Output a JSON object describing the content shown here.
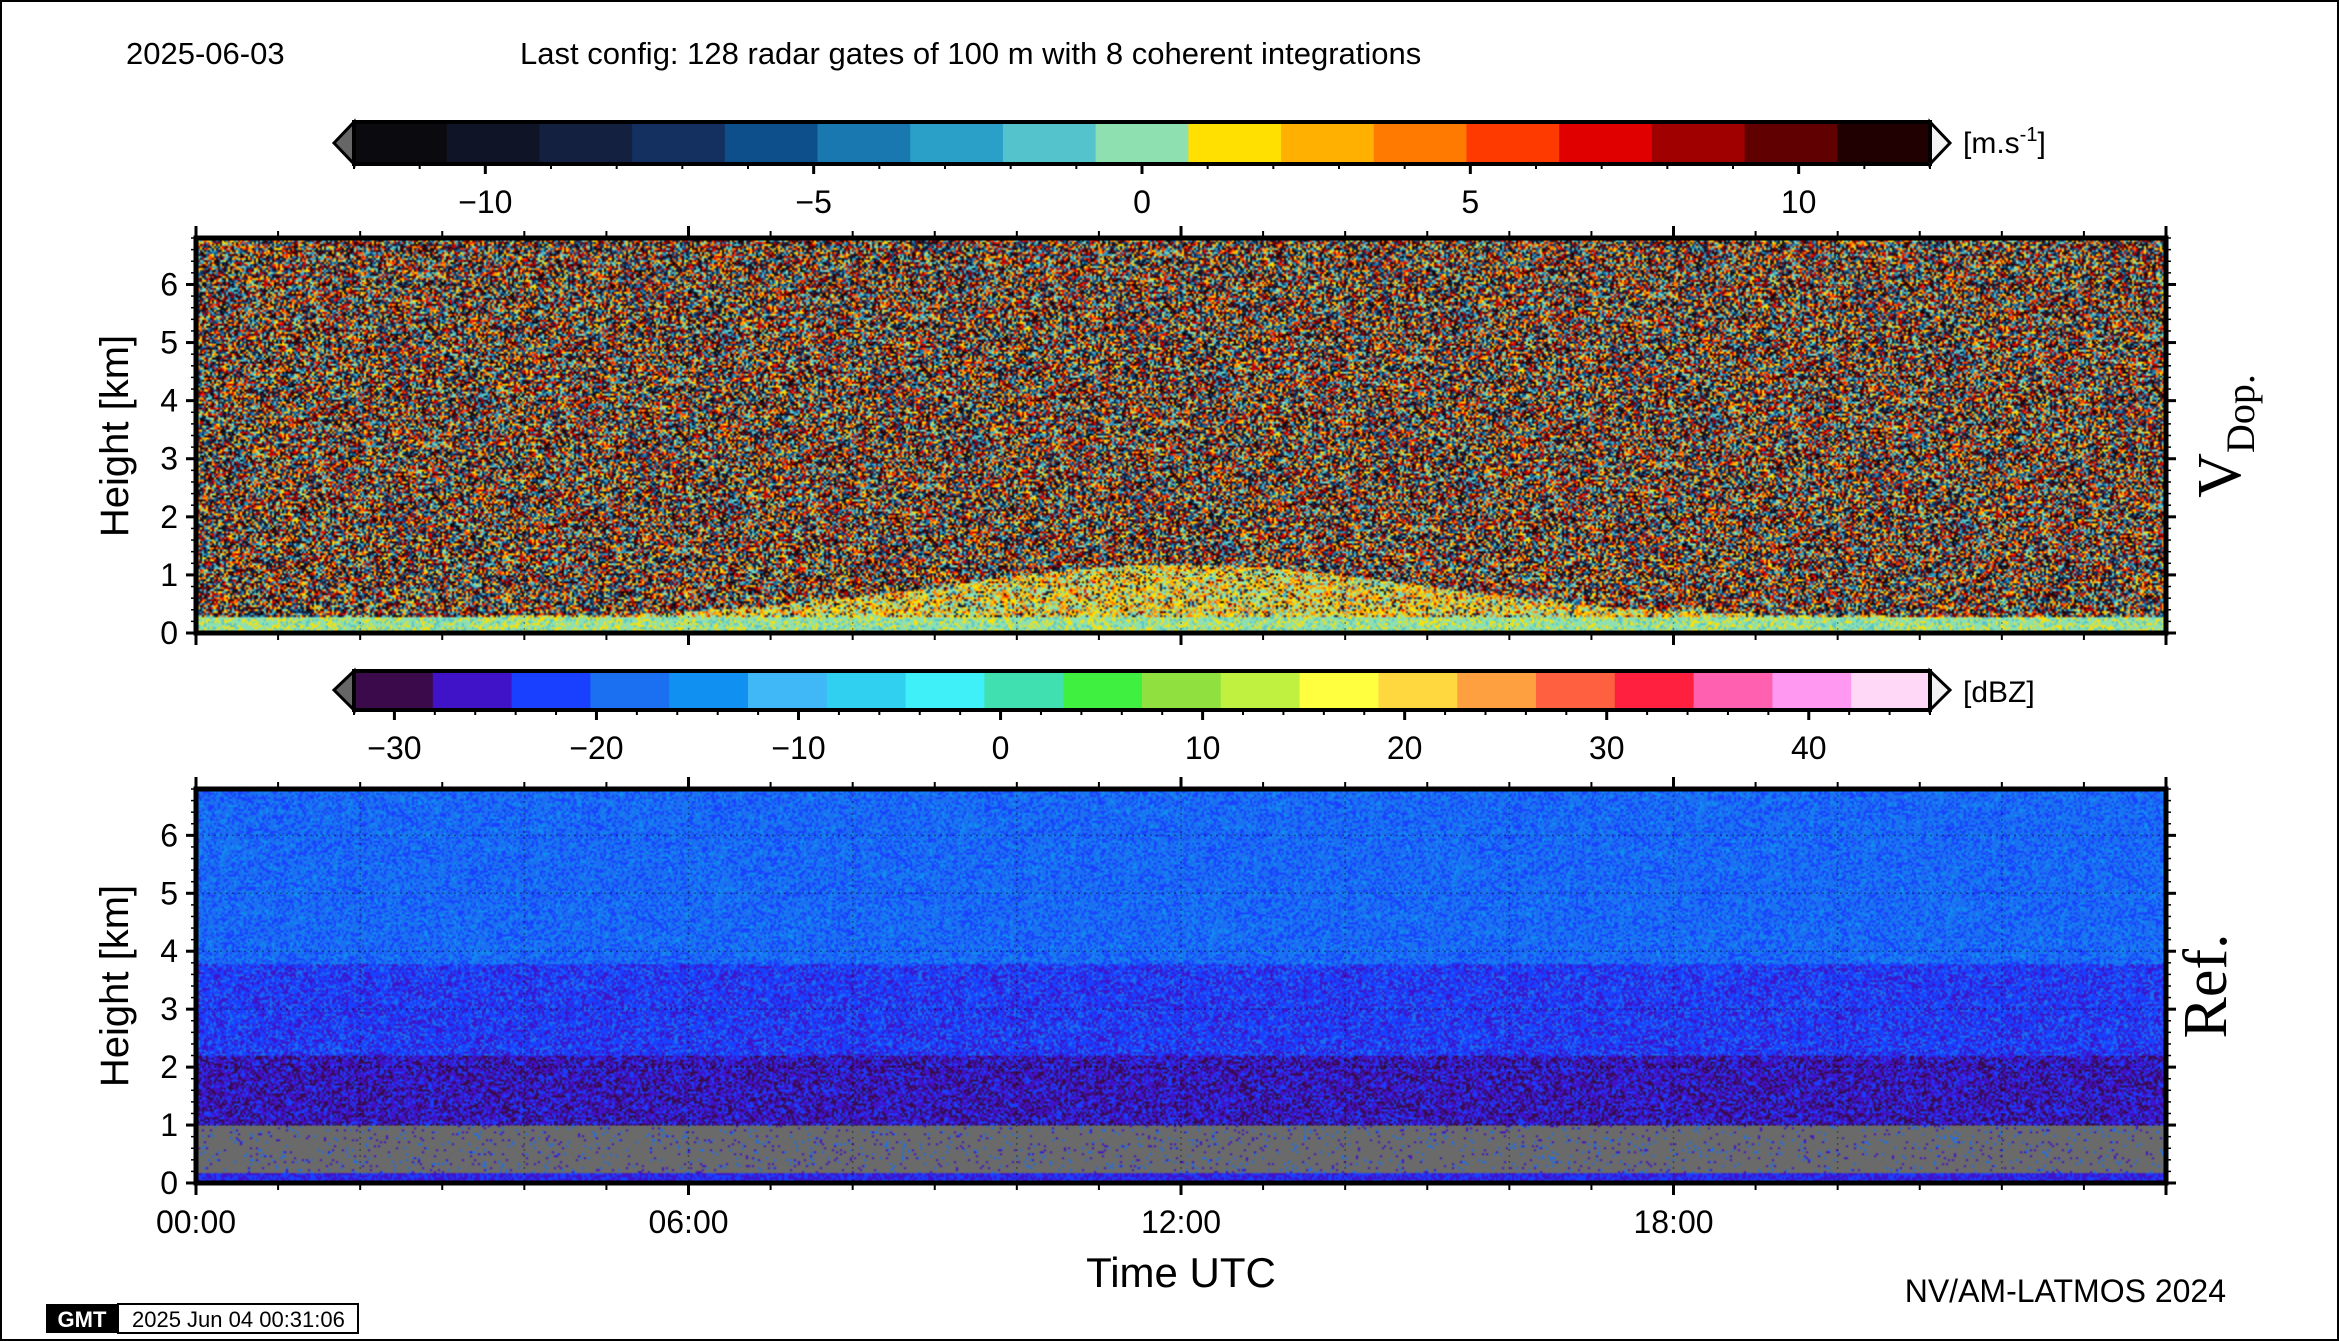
{
  "header": {
    "date": "2025-06-03",
    "config": "Last config: 128 radar gates of 100 m with 8 coherent integrations"
  },
  "footer": {
    "gmt_logo": "GMT",
    "timestamp": "2025 Jun 04 00:31:06",
    "credit": "NV/AM-LATMOS 2024"
  },
  "chart_data": [
    {
      "type": "heatmap",
      "panel_label": "V",
      "panel_label_sub": "Dop.",
      "ylabel": "Height [km]",
      "ylim": [
        0,
        6.8
      ],
      "yticks": [
        "0",
        "1",
        "2",
        "3",
        "4",
        "5",
        "6"
      ],
      "xlim_hours": [
        0,
        24
      ],
      "grid": true,
      "colorbar": {
        "unit": "[m.s",
        "unit_sup": "-1",
        "unit_end": "]",
        "range": [
          -12,
          12
        ],
        "tick_values": [
          -10,
          -5,
          0,
          5,
          10
        ],
        "tick_labels": [
          "−10",
          "−5",
          "0",
          "5",
          "10"
        ],
        "colors": [
          "#0a0a0f",
          "#0f1526",
          "#132040",
          "#143060",
          "#0d4f8a",
          "#1a78b0",
          "#2aa0c8",
          "#55c3cc",
          "#8ee0b0",
          "#ffe000",
          "#ffb000",
          "#ff7a00",
          "#ff3a00",
          "#e00000",
          "#a00000",
          "#600000",
          "#200000"
        ]
      },
      "description_fields": {
        "noise_region_km": [
          0.3,
          6.8
        ],
        "signal_layer_km": [
          0,
          0.9
        ]
      }
    },
    {
      "type": "heatmap",
      "panel_label": "Ref.",
      "ylabel": "Height [km]",
      "xlabel": "Time UTC",
      "ylim": [
        0,
        6.8
      ],
      "yticks": [
        "0",
        "1",
        "2",
        "3",
        "4",
        "5",
        "6"
      ],
      "xticks": [
        "00:00",
        "06:00",
        "12:00",
        "18:00"
      ],
      "xtick_hours": [
        0,
        6,
        12,
        18
      ],
      "xlim_hours": [
        0,
        24
      ],
      "grid": true,
      "colorbar": {
        "unit": "[dBZ]",
        "range": [
          -32,
          46
        ],
        "tick_values": [
          -30,
          -20,
          -10,
          0,
          10,
          20,
          30,
          40
        ],
        "tick_labels": [
          "−30",
          "−20",
          "−10",
          "0",
          "10",
          "20",
          "30",
          "40"
        ],
        "colors": [
          "#3a0a4a",
          "#4012c8",
          "#1a40ff",
          "#1a70f0",
          "#1090f0",
          "#40b8f8",
          "#30d0f0",
          "#40f0f8",
          "#40e0b0",
          "#40f040",
          "#90e040",
          "#c0f040",
          "#ffff40",
          "#ffd840",
          "#ffa040",
          "#ff6040",
          "#ff2040",
          "#ff60b0",
          "#ff98f0",
          "#ffd8f8"
        ]
      }
    }
  ]
}
